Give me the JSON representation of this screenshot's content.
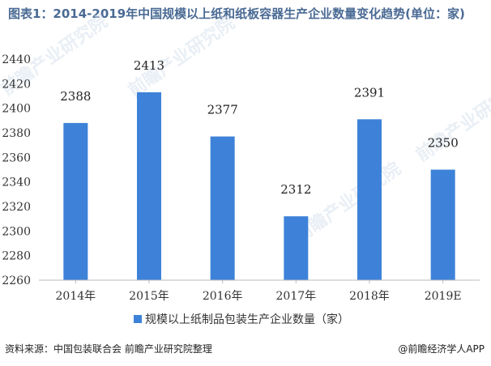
{
  "title": "图表1：2014-2019年中国规模以上纸和纸板容器生产企业数量变化趋势(单位：家)",
  "chart_data": {
    "type": "bar",
    "categories": [
      "2014年",
      "2015年",
      "2016年",
      "2017年",
      "2018年",
      "2019E"
    ],
    "series": [
      {
        "name": "规模以上纸制品包装生产企业数量（家）",
        "values": [
          2388,
          2413,
          2377,
          2312,
          2391,
          2350
        ]
      }
    ],
    "ylim": [
      2260,
      2440
    ],
    "yticks": [
      2260,
      2280,
      2300,
      2320,
      2340,
      2360,
      2380,
      2400,
      2420,
      2440
    ],
    "bar_color": "#3d82d8",
    "grid": false,
    "legend": "bottom-center"
  },
  "source": "资料来源：中国包装联合会 前瞻产业研究院整理",
  "credit": "@前瞻经济学人APP",
  "watermark": "前瞻产业研究院"
}
